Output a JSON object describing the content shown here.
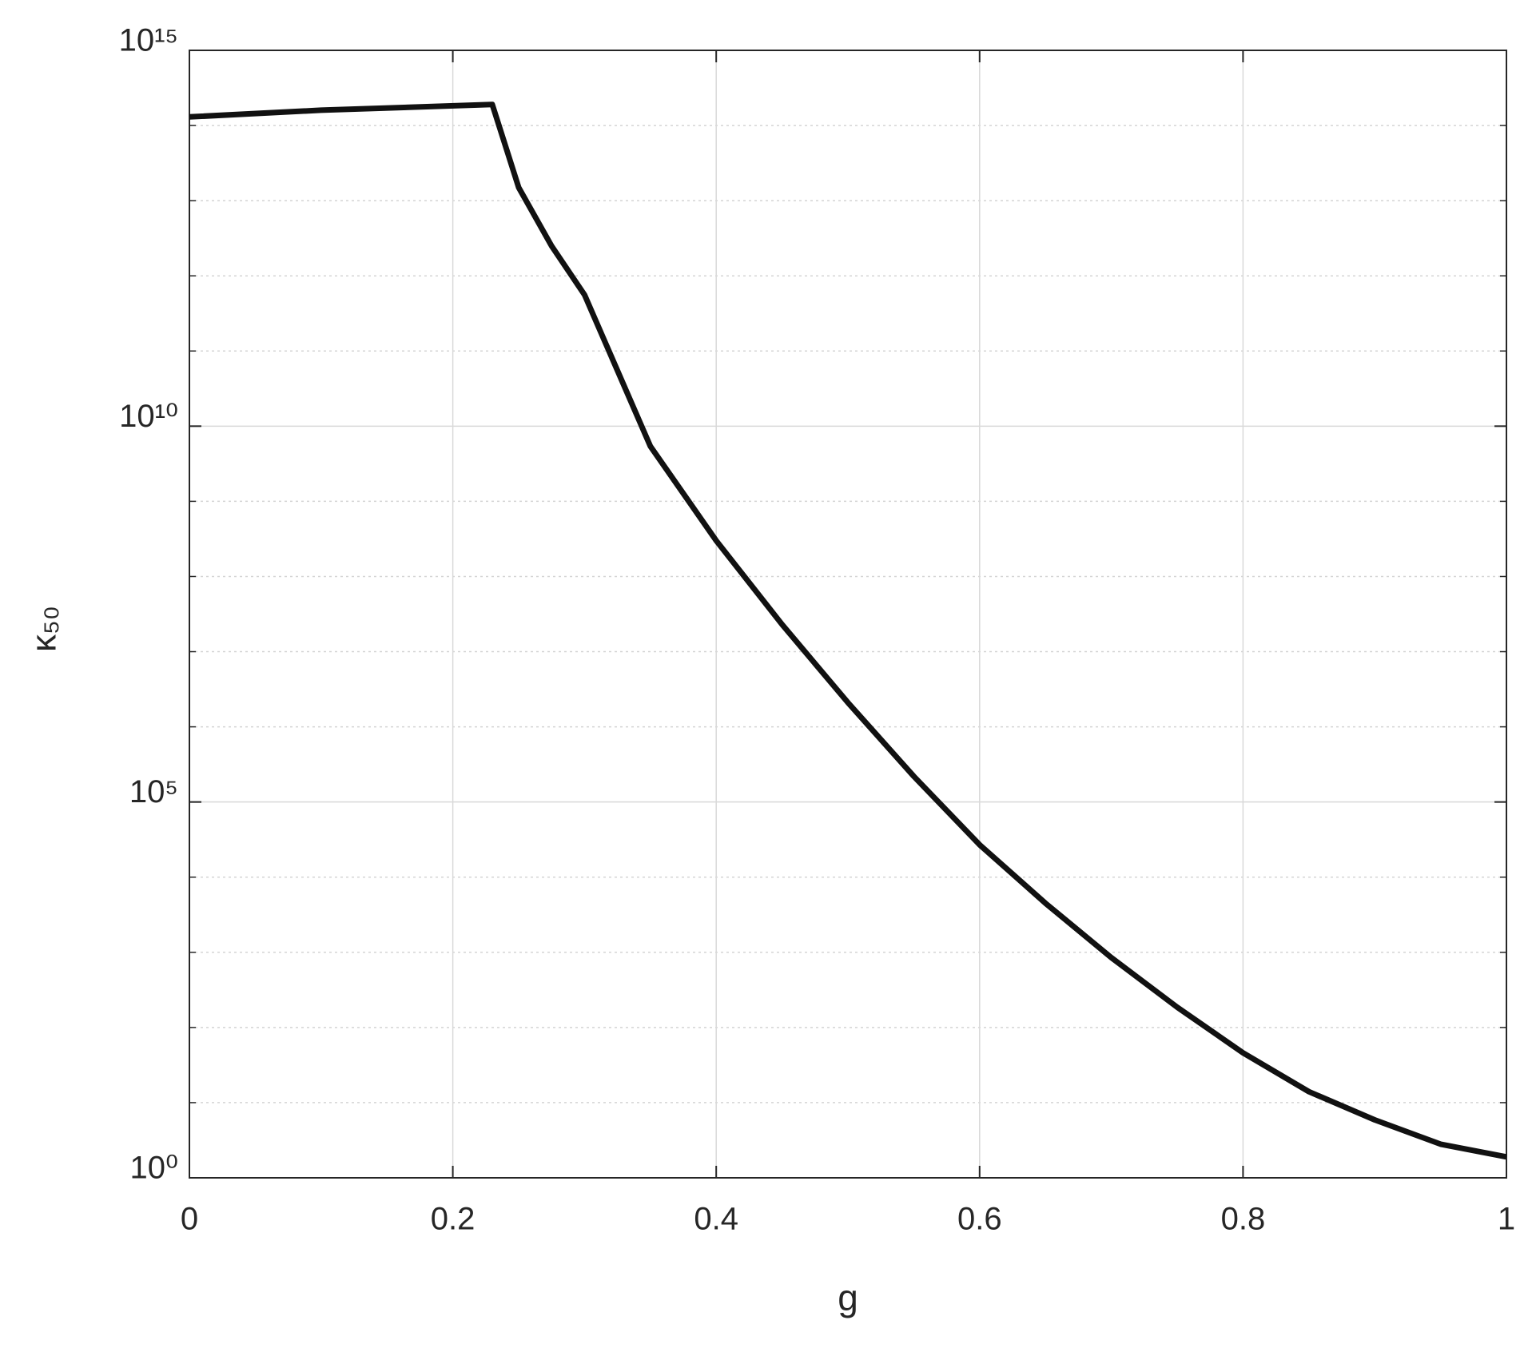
{
  "chart_data": {
    "type": "line",
    "x_label": "g",
    "y_label": "κ₅₀",
    "x": [
      0,
      0.1,
      0.23,
      0.25,
      0.275,
      0.3,
      0.35,
      0.4,
      0.45,
      0.5,
      0.55,
      0.6,
      0.65,
      0.7,
      0.75,
      0.8,
      0.85,
      0.9,
      0.95,
      1.0
    ],
    "values": [
      130000000000000.0,
      160000000000000.0,
      190000000000000.0,
      15000000000000.0,
      2500000000000.0,
      560000000000.0,
      5400000000.0,
      300000000.0,
      23000000.0,
      2100000.0,
      220000.0,
      27000.0,
      4500,
      850,
      186,
      46,
      14,
      5.9,
      2.8,
      1.9
    ],
    "color": "#111111",
    "xlim": [
      0,
      1
    ],
    "xticks": [
      0,
      0.2,
      0.4,
      0.6,
      0.8,
      1
    ],
    "ylim": [
      1,
      1000000000000000.0
    ],
    "log_y": true,
    "yticks": [
      {
        "value": 1,
        "label": "10⁰"
      },
      {
        "value": 100000.0,
        "label": "10⁵"
      },
      {
        "value": 10000000000.0,
        "label": "10¹⁰"
      },
      {
        "value": 1000000000000000.0,
        "label": "10¹⁵"
      }
    ],
    "yminorticks": [
      10,
      100,
      1000,
      10000.0,
      1000000.0,
      10000000.0,
      100000000.0,
      1000000000.0,
      100000000000.0,
      1000000000000.0,
      10000000000000.0,
      100000000000000.0
    ],
    "grid": true
  }
}
